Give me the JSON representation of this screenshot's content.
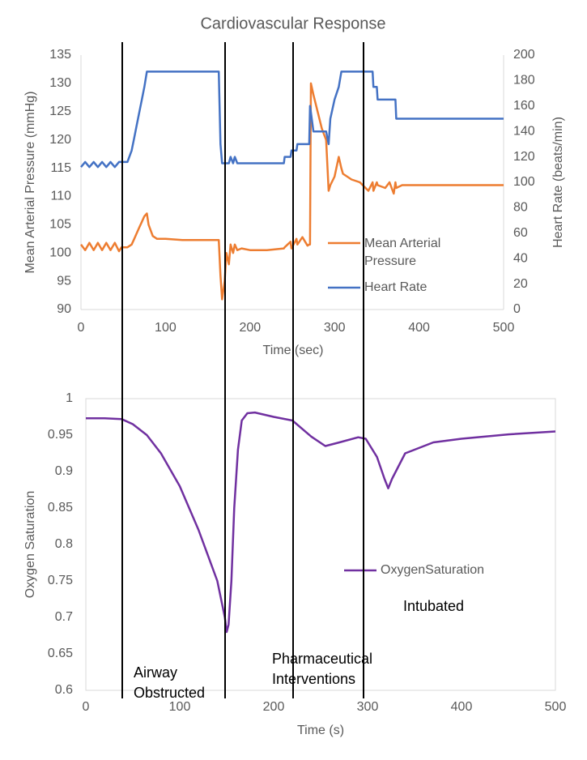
{
  "chart_data": [
    {
      "type": "line",
      "title": "Cardiovascular Response",
      "x_label": "Time (sec)",
      "y_label": "Mean Arterial Pressure (mmHg)",
      "y2_label": "Heart Rate (beats/min)",
      "x": [
        0,
        5,
        10,
        15,
        20,
        25,
        30,
        35,
        40,
        45,
        48,
        55,
        60,
        63,
        66,
        69,
        72,
        75,
        78,
        80,
        85,
        90,
        100,
        120,
        140,
        160,
        163,
        165,
        167,
        170,
        172,
        175,
        177,
        180,
        182,
        185,
        190,
        200,
        220,
        240,
        241,
        248,
        249,
        255,
        256,
        262,
        268,
        270,
        271,
        272,
        275,
        280,
        285,
        290,
        293,
        295,
        300,
        305,
        308,
        310,
        315,
        320,
        330,
        340,
        345,
        346,
        350,
        351,
        360,
        365,
        370,
        372,
        373,
        380,
        400,
        450,
        500
      ],
      "series": [
        {
          "name": "Mean Arterial Pressure",
          "color": "#ed7d31",
          "values": [
            101.5,
            100.5,
            101.8,
            100.5,
            101.8,
            100.5,
            101.8,
            100.5,
            101.8,
            100.3,
            101,
            101,
            101.5,
            102.5,
            103.5,
            104.5,
            105.5,
            106.5,
            107,
            105,
            103,
            102.5,
            102.5,
            102.3,
            102.3,
            102.3,
            102.3,
            96,
            91.8,
            95,
            100,
            98,
            101.5,
            100,
            101.5,
            100.5,
            100.8,
            100.5,
            100.5,
            100.8,
            101,
            102,
            100.8,
            102.5,
            101.5,
            102.8,
            101.3,
            101.5,
            101.5,
            130,
            128,
            125,
            122,
            120,
            111,
            112,
            113.5,
            117,
            115,
            114,
            113.5,
            113,
            112.5,
            111,
            112.5,
            111,
            112.5,
            112,
            111.5,
            112.5,
            110.5,
            112.5,
            111.5,
            112,
            112,
            112,
            112
          ]
        },
        {
          "name": "Heart Rate",
          "color": "#4472c4",
          "axis": "y2",
          "values": [
            112,
            116,
            112,
            116,
            112,
            116,
            112,
            116,
            112,
            116,
            116,
            116,
            125,
            135,
            145,
            155,
            165,
            175,
            187,
            187,
            187,
            187,
            187,
            187,
            187,
            187,
            187,
            130,
            115,
            115,
            115,
            115,
            120,
            115,
            120,
            115,
            115,
            115,
            115,
            115,
            120,
            120,
            125,
            125,
            130,
            130,
            130,
            130,
            160,
            155,
            140,
            140,
            140,
            140,
            130,
            150,
            165,
            175,
            187,
            187,
            187,
            187,
            187,
            187,
            187,
            175,
            175,
            165,
            165,
            165,
            165,
            165,
            150,
            150,
            150,
            150,
            150
          ]
        }
      ],
      "xlim": [
        0,
        500
      ],
      "xticks": [
        0,
        100,
        200,
        300,
        400,
        500
      ],
      "ylim": [
        90,
        135
      ],
      "yticks": [
        90,
        95,
        100,
        105,
        110,
        115,
        120,
        125,
        130,
        135
      ],
      "y2lim": [
        0,
        200
      ],
      "y2ticks": [
        0,
        20,
        40,
        60,
        80,
        100,
        120,
        140,
        160,
        180,
        200
      ]
    },
    {
      "type": "line",
      "x_label": "Time (s)",
      "y_label": "Oxygen Saturation",
      "x": [
        0,
        20,
        38,
        50,
        65,
        80,
        100,
        120,
        140,
        148,
        150,
        152,
        155,
        158,
        162,
        166,
        172,
        180,
        200,
        220,
        240,
        255,
        270,
        290,
        298,
        310,
        318,
        322,
        326,
        340,
        370,
        400,
        450,
        500
      ],
      "series": [
        {
          "name": "OxygenSaturation",
          "color": "#7030a0",
          "values": [
            0.973,
            0.973,
            0.972,
            0.965,
            0.95,
            0.925,
            0.88,
            0.82,
            0.75,
            0.7,
            0.68,
            0.69,
            0.75,
            0.85,
            0.93,
            0.97,
            0.98,
            0.981,
            0.975,
            0.97,
            0.948,
            0.935,
            0.94,
            0.947,
            0.945,
            0.92,
            0.89,
            0.877,
            0.89,
            0.925,
            0.94,
            0.945,
            0.951,
            0.955
          ]
        }
      ],
      "xlim": [
        0,
        500
      ],
      "xticks": [
        0,
        100,
        200,
        300,
        400,
        500
      ],
      "ylim": [
        0.6,
        1
      ],
      "yticks": [
        0.6,
        0.65,
        0.7,
        0.75,
        0.8,
        0.85,
        0.9,
        0.95,
        1
      ],
      "annotations": [
        "Airway Obstructed",
        "Pharmaceutical Interventions",
        "Intubated"
      ]
    }
  ]
}
